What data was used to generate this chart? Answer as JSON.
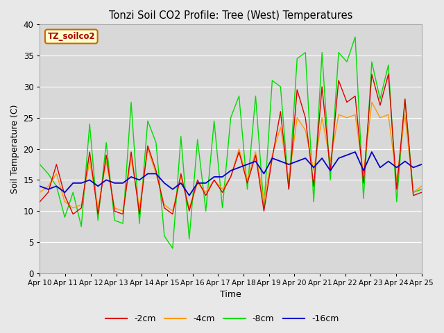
{
  "title": "Tonzi Soil CO2 Profile: Tree (West) Temperatures",
  "xlabel": "Time",
  "ylabel": "Soil Temperature (C)",
  "ylim": [
    0,
    40
  ],
  "xlim": [
    0,
    15
  ],
  "x_tick_labels": [
    "Apr 10",
    "Apr 11",
    "Apr 12",
    "Apr 13",
    "Apr 14",
    "Apr 15",
    "Apr 16",
    "Apr 17",
    "Apr 18",
    "Apr 19",
    "Apr 20",
    "Apr 21",
    "Apr 22",
    "Apr 23",
    "Apr 24",
    "Apr 25"
  ],
  "legend_label": "TZ_soilco2",
  "legend_entries": [
    "-2cm",
    "-4cm",
    "-8cm",
    "-16cm"
  ],
  "line_colors": [
    "#dd0000",
    "#ff9900",
    "#00dd00",
    "#0000cc"
  ],
  "background_color": "#e8e8e8",
  "plot_bg_color": "#d8d8d8",
  "data_2cm": [
    11.5,
    13.0,
    17.5,
    12.5,
    9.5,
    10.5,
    19.5,
    9.5,
    19.0,
    10.0,
    9.5,
    19.5,
    9.5,
    20.5,
    16.5,
    10.5,
    9.5,
    16.0,
    10.0,
    15.0,
    12.5,
    15.0,
    13.0,
    15.5,
    19.5,
    14.5,
    19.0,
    10.0,
    18.5,
    26.0,
    13.5,
    29.5,
    25.0,
    14.0,
    30.0,
    16.5,
    31.0,
    27.5,
    28.5,
    14.5,
    32.0,
    27.0,
    32.0,
    13.5,
    28.0,
    12.5,
    13.0
  ],
  "data_4cm": [
    13.0,
    14.0,
    16.0,
    11.5,
    10.5,
    11.0,
    18.0,
    10.5,
    18.0,
    10.5,
    10.0,
    18.5,
    10.5,
    20.0,
    16.0,
    11.0,
    10.0,
    15.5,
    10.5,
    14.5,
    13.0,
    15.0,
    13.5,
    15.5,
    20.0,
    15.0,
    19.5,
    11.5,
    19.0,
    23.5,
    15.0,
    25.0,
    23.0,
    16.5,
    25.0,
    18.0,
    25.5,
    25.0,
    25.5,
    16.0,
    27.5,
    25.0,
    25.5,
    15.0,
    25.5,
    13.0,
    14.0
  ],
  "data_8cm": [
    17.5,
    16.0,
    14.0,
    9.0,
    13.0,
    7.5,
    24.0,
    8.5,
    21.0,
    8.5,
    8.0,
    27.5,
    8.0,
    24.5,
    21.0,
    6.0,
    4.0,
    22.0,
    5.5,
    21.5,
    10.0,
    24.5,
    10.5,
    25.0,
    28.5,
    13.5,
    28.5,
    10.5,
    31.0,
    30.0,
    13.5,
    34.5,
    35.5,
    11.5,
    35.5,
    15.0,
    35.5,
    34.0,
    38.0,
    12.0,
    34.0,
    28.0,
    33.5,
    11.5,
    28.0,
    13.0,
    13.5
  ],
  "data_16cm": [
    14.0,
    13.5,
    14.0,
    13.0,
    14.5,
    14.5,
    15.0,
    14.0,
    15.0,
    14.5,
    14.5,
    15.5,
    15.0,
    16.0,
    16.0,
    14.5,
    13.5,
    14.5,
    12.5,
    14.5,
    14.5,
    15.5,
    15.5,
    16.5,
    17.0,
    17.5,
    18.0,
    16.0,
    18.5,
    18.0,
    17.5,
    18.0,
    18.5,
    17.0,
    18.5,
    16.5,
    18.5,
    19.0,
    19.5,
    16.5,
    19.5,
    17.0,
    18.0,
    17.0,
    18.0,
    17.0,
    17.5
  ]
}
